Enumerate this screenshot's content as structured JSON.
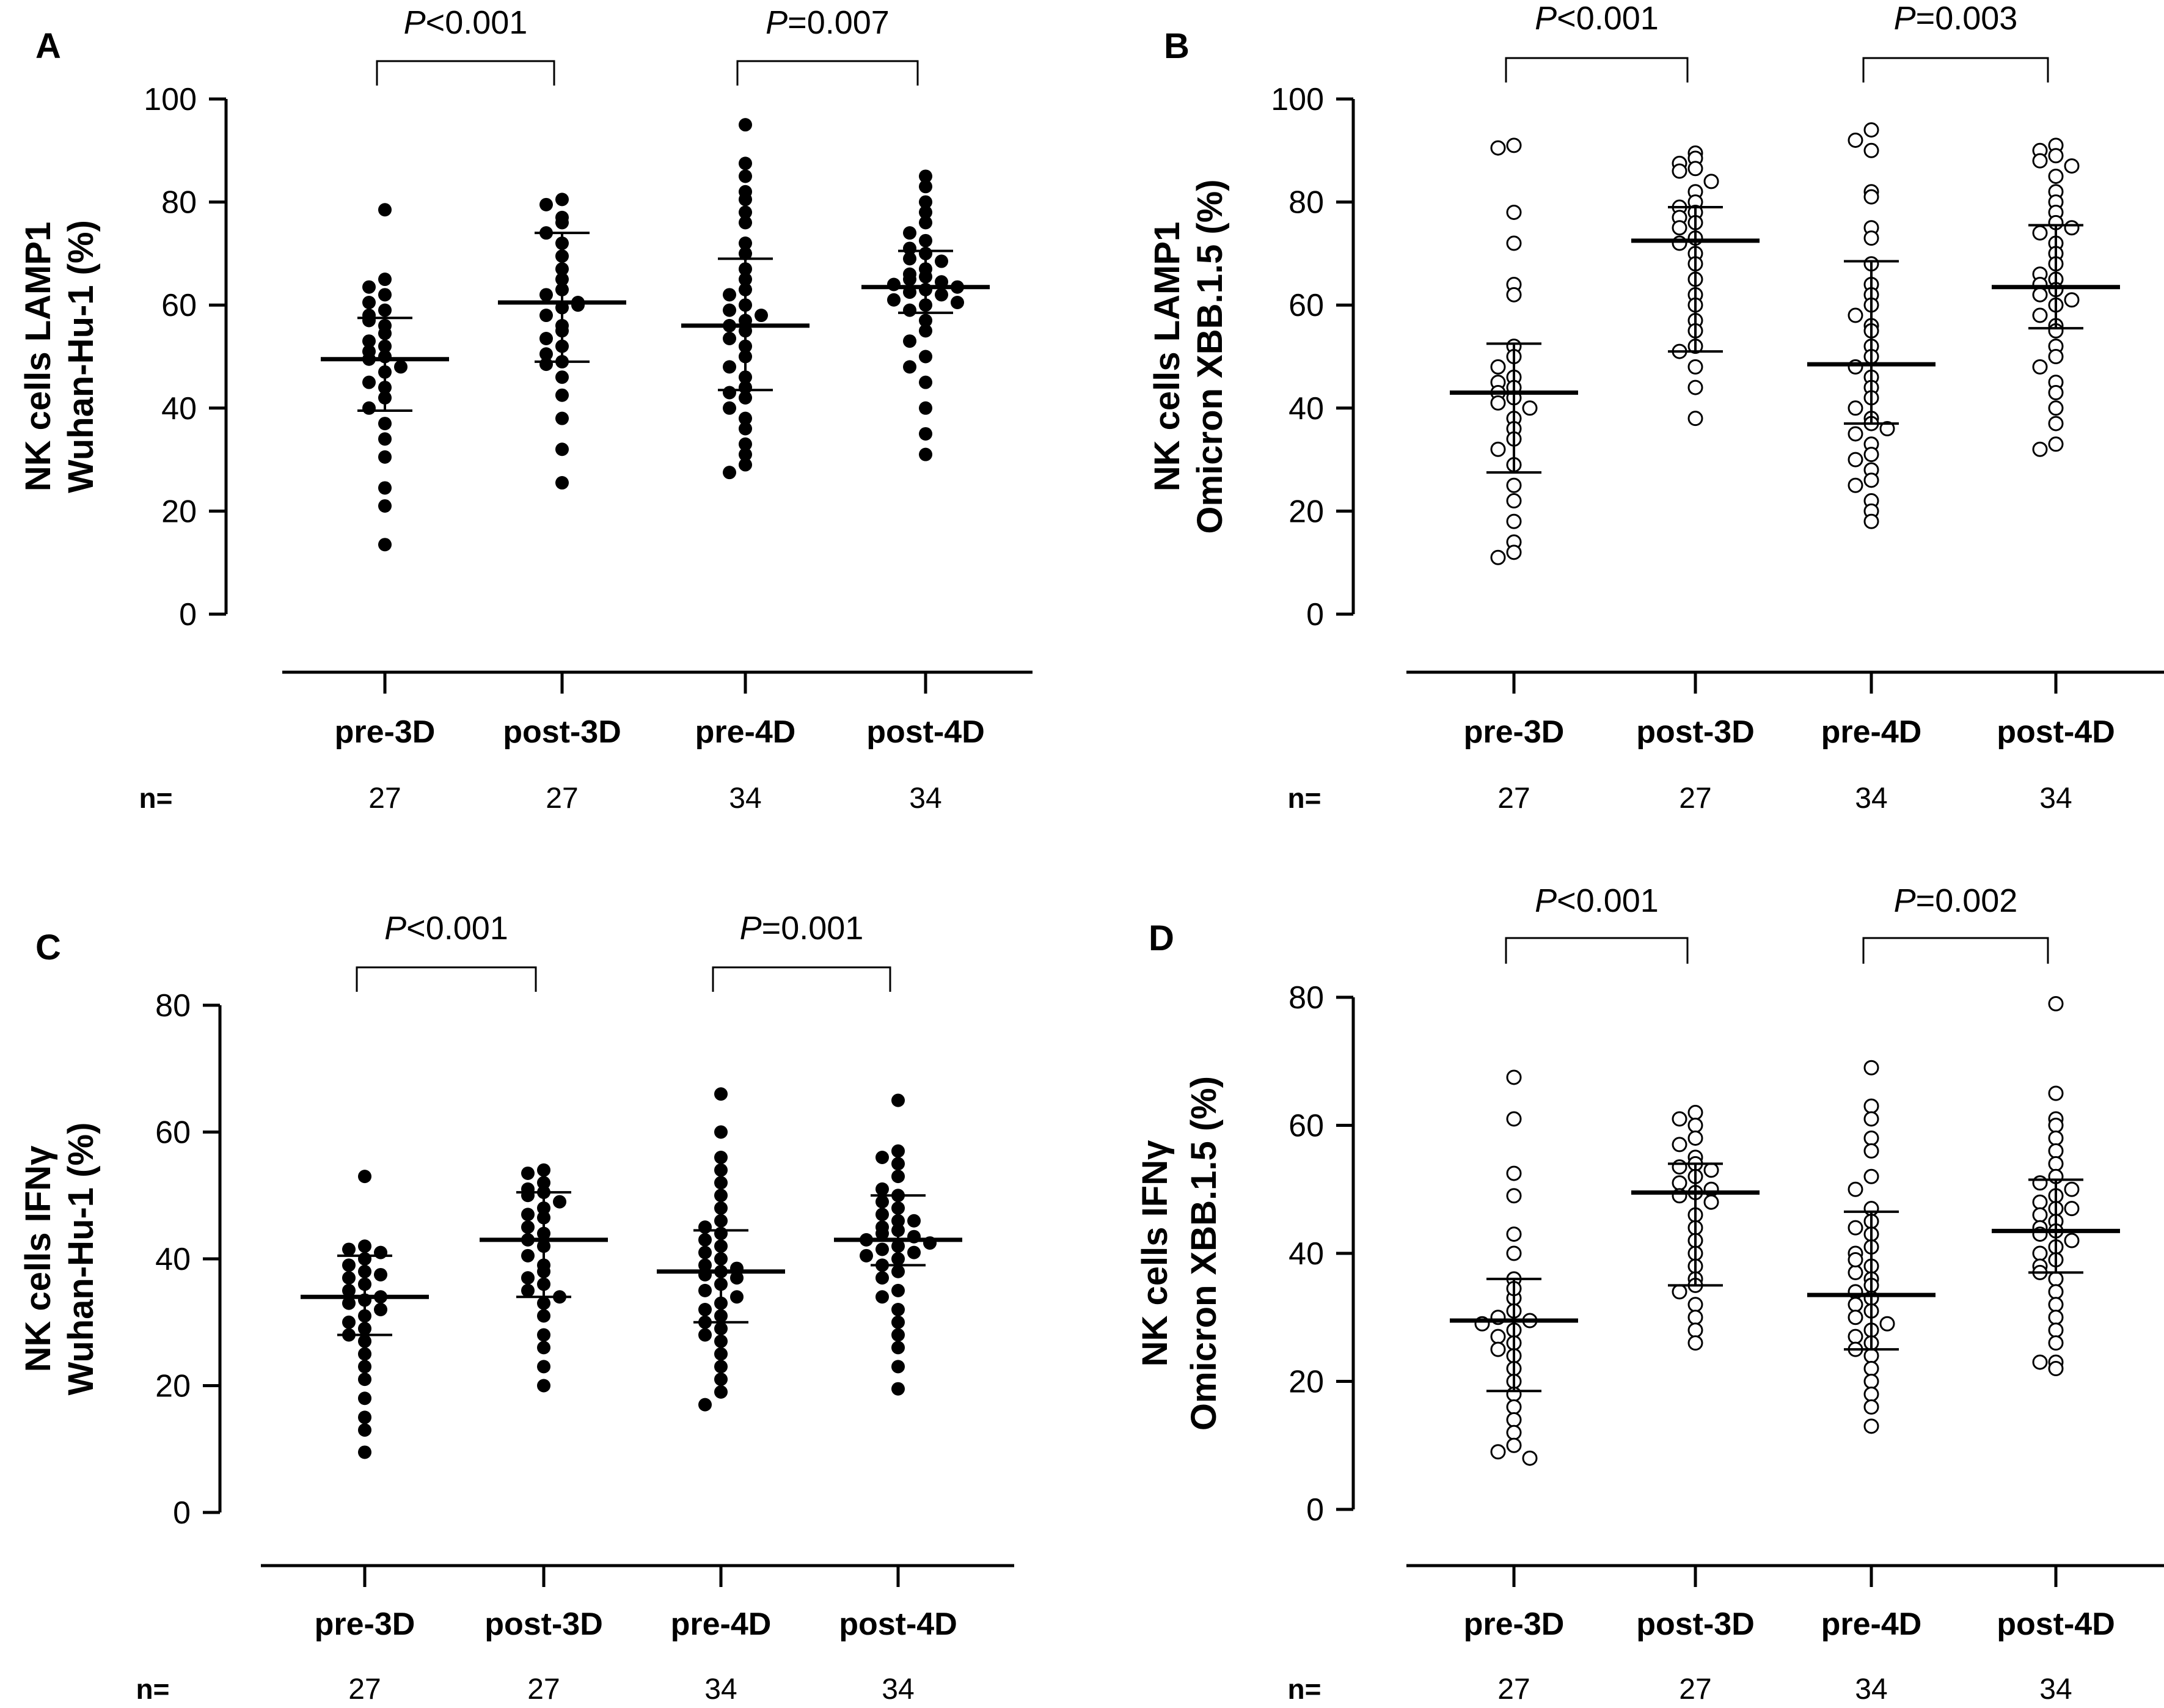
{
  "figure": {
    "n_prefix": "n="
  },
  "chart_data": [
    {
      "panel": "A",
      "type": "scatter",
      "style": "filled",
      "ylabel_lines": [
        "NK cells LAMP1",
        "Wuhan-Hu-1 (%)"
      ],
      "ylim": [
        0,
        100
      ],
      "yticks": [
        0,
        20,
        40,
        60,
        80,
        100
      ],
      "categories": [
        "pre-3D",
        "post-3D",
        "pre-4D",
        "post-4D"
      ],
      "n": [
        "27",
        "27",
        "34",
        "34"
      ],
      "comparisons": [
        {
          "groups": [
            0,
            1
          ],
          "p_prefix": "P",
          "p_rest": "<0.001"
        },
        {
          "groups": [
            2,
            3
          ],
          "p_prefix": "P",
          "p_rest": "=0.007"
        }
      ],
      "summary": [
        {
          "median": 49.5,
          "q1": 39.5,
          "q3": 57.5
        },
        {
          "median": 60.5,
          "q1": 49,
          "q3": 74
        },
        {
          "median": 56,
          "q1": 43.5,
          "q3": 69
        },
        {
          "median": 63.5,
          "q1": 58.5,
          "q3": 70.5
        }
      ],
      "series": [
        {
          "values": [
            78.5,
            65,
            63.5,
            62,
            60.5,
            59,
            58,
            56,
            54.5,
            53,
            52,
            51,
            50,
            49.5,
            48,
            47,
            45,
            44,
            42,
            40,
            37,
            34,
            30.5,
            24.5,
            21,
            13.5,
            57
          ]
        },
        {
          "values": [
            80.5,
            79.5,
            77,
            76,
            74,
            72,
            69.5,
            67,
            65,
            63,
            62,
            60.5,
            59.5,
            58,
            56,
            55,
            53.5,
            52,
            50.5,
            49,
            48.5,
            46,
            42.5,
            38,
            32,
            25.5,
            60
          ]
        },
        {
          "values": [
            95,
            87.5,
            85,
            82,
            80.5,
            78,
            76,
            72,
            70,
            67,
            65,
            63,
            62,
            60,
            59,
            58,
            57,
            56,
            55,
            53.5,
            52,
            50,
            48,
            46,
            44,
            43,
            42,
            40,
            38,
            36,
            33,
            31,
            29,
            27.5
          ]
        },
        {
          "values": [
            85,
            83,
            80,
            78,
            76,
            74,
            72.5,
            71,
            70,
            69,
            68.5,
            67,
            66,
            65.5,
            65,
            64.5,
            64,
            63.5,
            63,
            62.5,
            62,
            61,
            60.5,
            60,
            59,
            57,
            55,
            53,
            50,
            48,
            45,
            40,
            35,
            31
          ]
        }
      ]
    },
    {
      "panel": "B",
      "type": "scatter",
      "style": "open",
      "ylabel_lines": [
        "NK cells LAMP1",
        "Omicron XBB.1.5 (%)"
      ],
      "ylim": [
        0,
        100
      ],
      "yticks": [
        0,
        20,
        40,
        60,
        80,
        100
      ],
      "categories": [
        "pre-3D",
        "post-3D",
        "pre-4D",
        "post-4D"
      ],
      "n": [
        "27",
        "27",
        "34",
        "34"
      ],
      "comparisons": [
        {
          "groups": [
            0,
            1
          ],
          "p_prefix": "P",
          "p_rest": "<0.001"
        },
        {
          "groups": [
            2,
            3
          ],
          "p_prefix": "P",
          "p_rest": "=0.003"
        }
      ],
      "summary": [
        {
          "median": 43,
          "q1": 27.5,
          "q3": 52.5
        },
        {
          "median": 72.5,
          "q1": 51,
          "q3": 79
        },
        {
          "median": 48.5,
          "q1": 37,
          "q3": 68.5
        },
        {
          "median": 63.5,
          "q1": 55.5,
          "q3": 75.5
        }
      ],
      "series": [
        {
          "values": [
            91,
            90.5,
            78,
            72,
            64,
            62,
            52,
            50,
            48,
            46,
            45,
            44,
            43,
            42,
            41,
            40,
            38,
            36,
            34,
            32,
            29,
            25,
            22,
            18,
            14,
            12,
            11
          ]
        },
        {
          "values": [
            89.5,
            88.5,
            87.5,
            86.5,
            86,
            84,
            82,
            80,
            79,
            78,
            77,
            76,
            75,
            73,
            72,
            70,
            68,
            65,
            62,
            60,
            57,
            55,
            52,
            51,
            48,
            44,
            38
          ]
        },
        {
          "values": [
            94,
            92,
            90,
            82,
            81,
            75,
            73,
            68,
            64,
            62,
            60,
            58,
            56,
            55,
            52,
            50,
            48,
            46,
            44,
            42,
            40,
            38,
            37,
            35,
            33,
            31,
            30,
            28,
            26,
            25,
            22,
            20,
            18,
            36
          ]
        },
        {
          "values": [
            91,
            90,
            89,
            88,
            87,
            85,
            82,
            80,
            78,
            76,
            74,
            72,
            70,
            68,
            66,
            65,
            64,
            63,
            62,
            61,
            60,
            58,
            56,
            55,
            52,
            50,
            48,
            45,
            40,
            37,
            33,
            32,
            43,
            75
          ]
        }
      ]
    },
    {
      "panel": "C",
      "type": "scatter",
      "style": "filled",
      "ylabel_lines": [
        "NK cells IFNγ",
        "Wuhan-Hu-1 (%)"
      ],
      "ylim": [
        0,
        80
      ],
      "yticks": [
        0,
        20,
        40,
        60,
        80
      ],
      "categories": [
        "pre-3D",
        "post-3D",
        "pre-4D",
        "post-4D"
      ],
      "n": [
        "27",
        "27",
        "34",
        "34"
      ],
      "comparisons": [
        {
          "groups": [
            0,
            1
          ],
          "p_prefix": "P",
          "p_rest": "<0.001"
        },
        {
          "groups": [
            2,
            3
          ],
          "p_prefix": "P",
          "p_rest": "=0.001"
        }
      ],
      "summary": [
        {
          "median": 34,
          "q1": 28,
          "q3": 40.5
        },
        {
          "median": 43,
          "q1": 34,
          "q3": 50.5
        },
        {
          "median": 38,
          "q1": 30,
          "q3": 44.5
        },
        {
          "median": 43,
          "q1": 39,
          "q3": 50
        }
      ],
      "series": [
        {
          "values": [
            53,
            42,
            41.5,
            41,
            40,
            39,
            38,
            37,
            36,
            35,
            34,
            33.5,
            33,
            32,
            31,
            30,
            29,
            28,
            27,
            25,
            23,
            21,
            18,
            15,
            13,
            9.5,
            37.5
          ]
        },
        {
          "values": [
            54,
            53.5,
            52,
            51,
            50.5,
            50,
            49,
            48,
            46.5,
            45,
            44,
            43,
            42,
            40.5,
            39,
            38,
            37,
            36,
            35,
            34,
            33,
            31,
            28,
            26,
            23,
            20,
            47
          ]
        },
        {
          "values": [
            66,
            60,
            56,
            54,
            52,
            50,
            48,
            46,
            45,
            44,
            43,
            42,
            41,
            40,
            39,
            38.5,
            38,
            37.5,
            37,
            36,
            35,
            34,
            33,
            32,
            31,
            30,
            29,
            28,
            27,
            25,
            23,
            21,
            19,
            17
          ]
        },
        {
          "values": [
            65,
            57,
            56,
            55,
            53,
            51,
            50,
            49,
            48,
            47,
            46,
            45,
            44.5,
            44,
            43.5,
            43,
            42.5,
            42,
            41.5,
            41,
            40.5,
            40,
            39,
            38,
            37,
            35,
            34,
            32,
            30,
            28,
            26,
            23,
            19.5,
            46
          ]
        }
      ]
    },
    {
      "panel": "D",
      "type": "scatter",
      "style": "open",
      "ylabel_lines": [
        "NK cells IFNγ",
        "Omicron XBB.1.5 (%)"
      ],
      "ylim": [
        0,
        80
      ],
      "yticks": [
        0,
        20,
        40,
        60,
        80
      ],
      "categories": [
        "pre-3D",
        "post-3D",
        "pre-4D",
        "post-4D"
      ],
      "n": [
        "27",
        "27",
        "34",
        "34"
      ],
      "comparisons": [
        {
          "groups": [
            0,
            1
          ],
          "p_prefix": "P",
          "p_rest": "<0.001"
        },
        {
          "groups": [
            2,
            3
          ],
          "p_prefix": "P",
          "p_rest": "=0.002"
        }
      ],
      "summary": [
        {
          "median": 29.5,
          "q1": 18.5,
          "q3": 36
        },
        {
          "median": 49.5,
          "q1": 35,
          "q3": 54
        },
        {
          "median": 33.5,
          "q1": 25,
          "q3": 46.5
        },
        {
          "median": 43.5,
          "q1": 37,
          "q3": 51.5
        }
      ],
      "series": [
        {
          "values": [
            67.5,
            61,
            52.5,
            49,
            43,
            40,
            36,
            33,
            31,
            30,
            29.5,
            29,
            28,
            27,
            26,
            25,
            24,
            22,
            20,
            18,
            16,
            14,
            12,
            10,
            9,
            8,
            34.5
          ]
        },
        {
          "values": [
            62,
            61,
            60,
            58,
            57,
            55,
            54,
            53.5,
            53,
            52,
            51,
            50,
            49.5,
            49,
            48,
            46,
            44,
            42,
            40,
            38,
            36,
            35,
            34,
            32,
            30,
            28,
            26
          ]
        },
        {
          "values": [
            69,
            63,
            61,
            58,
            56,
            52,
            47,
            45,
            43,
            41,
            40,
            38,
            36,
            35,
            34,
            33,
            32,
            31,
            30,
            29,
            28,
            27,
            26,
            25,
            24,
            22,
            20,
            18,
            16,
            13,
            37,
            39,
            44,
            50
          ]
        },
        {
          "values": [
            79,
            65,
            61,
            60,
            58,
            56,
            54,
            52,
            51,
            50,
            49,
            48,
            47,
            46,
            45,
            44,
            43.5,
            43,
            42,
            41,
            40,
            39,
            38,
            36,
            34,
            32,
            30,
            28,
            26,
            23,
            22,
            23,
            37,
            47
          ]
        }
      ]
    }
  ]
}
